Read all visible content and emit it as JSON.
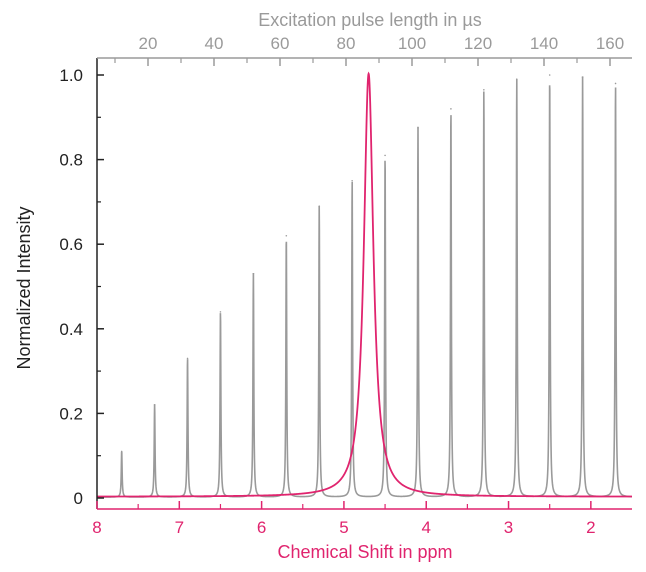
{
  "chart_data": {
    "type": "line",
    "xlabel": "Chemical Shift in ppm",
    "x2label": "Excitation pulse length in µs",
    "ylabel": "Normalized Intensity",
    "xlim": [
      8,
      1.5
    ],
    "ylim": [
      0,
      1.0
    ],
    "x_reversed": true,
    "x_ticks": [
      8,
      7,
      6,
      5,
      4,
      3,
      2
    ],
    "x_tick_labels": [
      "8",
      "7",
      "6",
      "5",
      "4",
      "3",
      "2"
    ],
    "y_ticks": [
      0,
      0.2,
      0.4,
      0.6,
      0.8,
      1.0
    ],
    "y_tick_labels": [
      "0",
      "0.2",
      "0.4",
      "0.6",
      "0.8",
      "1.0"
    ],
    "x2_ticks": [
      20,
      40,
      60,
      80,
      100,
      120,
      140,
      160
    ],
    "x2_tick_labels": [
      "20",
      "40",
      "60",
      "80",
      "100",
      "120",
      "140",
      "160"
    ],
    "grid": false,
    "colors": {
      "gray_series": "#9a9a9a",
      "pink_series": "#e0246e",
      "axis": "#222222"
    },
    "series": [
      {
        "color": "#9a9a9a",
        "peaks": [
          {
            "pulse_us": 10,
            "ppm": 7.7,
            "intensity": 0.11
          },
          {
            "pulse_us": 20,
            "ppm": 7.3,
            "intensity": 0.22
          },
          {
            "pulse_us": 30,
            "ppm": 6.9,
            "intensity": 0.33
          },
          {
            "pulse_us": 40,
            "ppm": 6.5,
            "intensity": 0.44
          },
          {
            "pulse_us": 50,
            "ppm": 6.1,
            "intensity": 0.53
          },
          {
            "pulse_us": 60,
            "ppm": 5.7,
            "intensity": 0.62
          },
          {
            "pulse_us": 70,
            "ppm": 5.3,
            "intensity": 0.69
          },
          {
            "pulse_us": 80,
            "ppm": 4.9,
            "intensity": 0.75
          },
          {
            "pulse_us": 90,
            "ppm": 4.5,
            "intensity": 0.81
          },
          {
            "pulse_us": 100,
            "ppm": 4.1,
            "intensity": 0.875
          },
          {
            "pulse_us": 110,
            "ppm": 3.7,
            "intensity": 0.92
          },
          {
            "pulse_us": 120,
            "ppm": 3.3,
            "intensity": 0.965
          },
          {
            "pulse_us": 130,
            "ppm": 2.9,
            "intensity": 0.99
          },
          {
            "pulse_us": 140,
            "ppm": 2.5,
            "intensity": 1.0
          },
          {
            "pulse_us": 150,
            "ppm": 2.1,
            "intensity": 0.995
          },
          {
            "pulse_us": 160,
            "ppm": 1.7,
            "intensity": 0.98
          }
        ]
      },
      {
        "color": "#e0246e",
        "peaks": [
          {
            "ppm": 4.7,
            "intensity": 1.0
          }
        ]
      }
    ]
  }
}
